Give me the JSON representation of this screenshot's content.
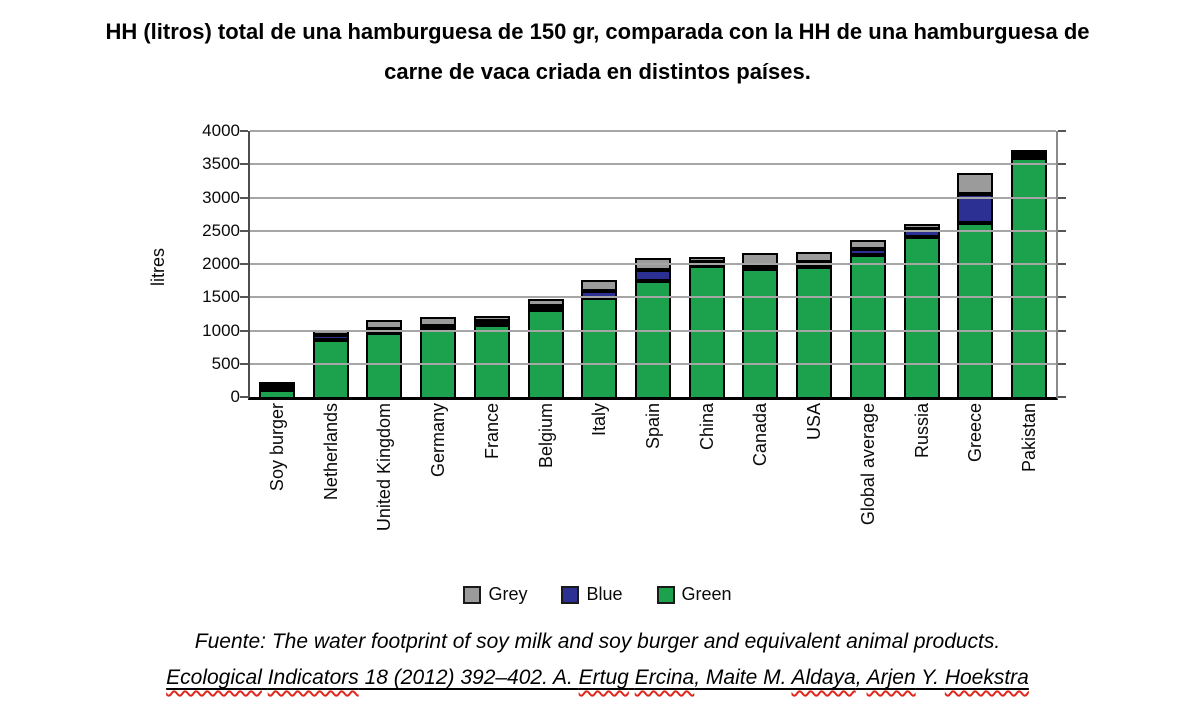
{
  "title": {
    "line1": "HH (litros) total de una hamburguesa de 150 gr, comparada con la HH de una hamburguesa de",
    "line2": "carne de vaca criada en distintos países."
  },
  "chart_data": {
    "type": "bar",
    "stacked": true,
    "title": "",
    "xlabel": "",
    "ylabel": "litres",
    "ylim": [
      0,
      4000
    ],
    "ytick_step": 500,
    "yticks": [
      0,
      500,
      1000,
      1500,
      2000,
      2500,
      3000,
      3500,
      4000
    ],
    "grid": true,
    "categories": [
      "Soy burger",
      "Netherlands",
      "United Kingdom",
      "Germany",
      "France",
      "Belgium",
      "Italy",
      "Spain",
      "China",
      "Canada",
      "USA",
      "Global average",
      "Russia",
      "Greece",
      "Pakistan"
    ],
    "series": [
      {
        "name": "Green",
        "color": "#1CA24C",
        "values": [
          100,
          850,
          970,
          1010,
          1085,
          1310,
          1490,
          1745,
          1965,
          1920,
          1960,
          2130,
          2400,
          2620,
          3590
        ]
      },
      {
        "name": "Blue",
        "color": "#2B3092",
        "values": [
          10,
          80,
          25,
          45,
          65,
          25,
          105,
          170,
          55,
          15,
          70,
          95,
          120,
          430,
          35
        ]
      },
      {
        "name": "Grey",
        "color": "#9B9B9B",
        "values": [
          50,
          85,
          125,
          130,
          70,
          110,
          160,
          170,
          80,
          190,
          145,
          140,
          85,
          320,
          40
        ]
      }
    ],
    "totals": [
      160,
      1015,
      1120,
      1185,
      1220,
      1445,
      1755,
      2085,
      2100,
      2125,
      2175,
      2365,
      2605,
      3370,
      3665
    ],
    "legend": {
      "position": "bottom",
      "entries": [
        {
          "label": "Grey",
          "color": "#9B9B9B"
        },
        {
          "label": "Blue",
          "color": "#2B3092"
        },
        {
          "label": "Green",
          "color": "#1CA24C"
        }
      ]
    },
    "colors": {
      "bar_outline": "#000000",
      "gridline": "#a6a6a6",
      "axis": "#000000"
    }
  },
  "footer": {
    "line1": "Fuente: The water footprint of soy milk and soy burger and equivalent animal products.",
    "line2_segments": [
      {
        "text": "Ecological",
        "wavy": true
      },
      {
        "text": " ",
        "wavy": false
      },
      {
        "text": "Indicators",
        "wavy": true
      },
      {
        "text": " 18 (2012) 392–402. A. ",
        "wavy": false
      },
      {
        "text": "Ertug",
        "wavy": true
      },
      {
        "text": " ",
        "wavy": false
      },
      {
        "text": "Ercina",
        "wavy": true
      },
      {
        "text": ", Maite M. ",
        "wavy": false
      },
      {
        "text": "Aldaya",
        "wavy": true
      },
      {
        "text": ", ",
        "wavy": false
      },
      {
        "text": "Arjen",
        "wavy": true
      },
      {
        "text": " Y. ",
        "wavy": false
      },
      {
        "text": "Hoekstra",
        "wavy": true
      }
    ]
  }
}
